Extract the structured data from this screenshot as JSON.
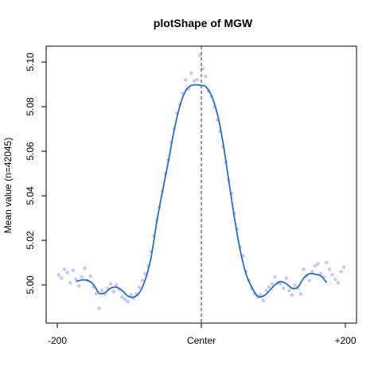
{
  "chart_data": {
    "type": "line",
    "title": "plotShape of MGW",
    "ylabel": "Mean value (n=42045)",
    "xlabel": "",
    "xlim": [
      -200,
      200
    ],
    "ylim": [
      4.988,
      5.11
    ],
    "x_ticks": [
      {
        "value": -200,
        "label": "-200"
      },
      {
        "value": 0,
        "label": "Center"
      },
      {
        "value": 200,
        "label": "+200"
      }
    ],
    "y_ticks": [
      {
        "value": 5.0,
        "label": "5.00"
      },
      {
        "value": 5.02,
        "label": "5.02"
      },
      {
        "value": 5.04,
        "label": "5.04"
      },
      {
        "value": 5.06,
        "label": "5.06"
      },
      {
        "value": 5.08,
        "label": "5.08"
      },
      {
        "value": 5.1,
        "label": "5.10"
      }
    ],
    "center_line_x": 0,
    "colors": {
      "line": "#2f6db5",
      "points": "#b7b7f7",
      "center_line": "#333333"
    },
    "series": [
      {
        "type": "line",
        "x": [
          -174,
          -166,
          -158,
          -150,
          -142,
          -134,
          -126,
          -118,
          -110,
          -102,
          -94,
          -86,
          -78,
          -70,
          -62,
          -54,
          -46,
          -38,
          -30,
          -22,
          -14,
          -6,
          0,
          6,
          14,
          22,
          30,
          38,
          46,
          54,
          62,
          70,
          78,
          86,
          94,
          102,
          110,
          118,
          126,
          134,
          142,
          150,
          158,
          166,
          174
        ],
        "y": [
          5.0015,
          5.0022,
          5.002,
          5.0003,
          4.9963,
          4.9965,
          4.9985,
          4.999,
          4.9975,
          4.995,
          4.9945,
          4.9965,
          5.0022,
          5.012,
          5.028,
          5.042,
          5.055,
          5.069,
          5.08,
          5.087,
          5.0895,
          5.0898,
          5.0895,
          5.089,
          5.085,
          5.077,
          5.064,
          5.047,
          5.03,
          5.0155,
          5.005,
          4.999,
          4.995,
          4.995,
          4.9972,
          5.0,
          5.0015,
          5.0005,
          4.9985,
          4.999,
          5.003,
          5.005,
          5.0048,
          5.004,
          5.001
        ]
      },
      {
        "type": "scatter",
        "x": [
          -198,
          -194,
          -190,
          -186,
          -182,
          -178,
          -174,
          -170,
          -166,
          -162,
          -158,
          -154,
          -150,
          -146,
          -142,
          -138,
          -134,
          -130,
          -126,
          -122,
          -118,
          -114,
          -110,
          -106,
          -102,
          -98,
          -94,
          -90,
          -86,
          -82,
          -78,
          -74,
          -70,
          -66,
          -62,
          -58,
          -54,
          -50,
          -46,
          -42,
          -38,
          -34,
          -30,
          -26,
          -22,
          -18,
          -14,
          -10,
          -6,
          -2,
          2,
          6,
          10,
          14,
          18,
          22,
          26,
          30,
          34,
          38,
          42,
          46,
          50,
          54,
          58,
          62,
          66,
          70,
          74,
          78,
          82,
          86,
          90,
          94,
          98,
          102,
          106,
          110,
          114,
          118,
          122,
          126,
          130,
          134,
          138,
          142,
          146,
          150,
          154,
          158,
          162,
          166,
          170,
          174,
          178,
          182,
          186,
          190,
          194,
          198
        ],
        "y": [
          5.0045,
          5.003,
          5.007,
          5.0055,
          5.001,
          5.0065,
          5.0025,
          4.9995,
          5.0035,
          5.0075,
          5.002,
          5.004,
          4.999,
          4.996,
          4.9895,
          4.9975,
          4.996,
          4.9985,
          5.0005,
          4.997,
          5.0,
          4.998,
          4.9945,
          4.9935,
          4.9925,
          4.9955,
          4.994,
          4.996,
          4.999,
          5.002,
          5.005,
          5.0085,
          5.015,
          5.022,
          5.029,
          5.035,
          5.042,
          5.05,
          5.056,
          5.064,
          5.07,
          5.077,
          5.081,
          5.086,
          5.092,
          5.088,
          5.095,
          5.0915,
          5.092,
          5.103,
          5.097,
          5.0935,
          5.087,
          5.0845,
          5.08,
          5.074,
          5.069,
          5.062,
          5.055,
          5.047,
          5.041,
          5.032,
          5.025,
          5.017,
          5.013,
          5.006,
          5.002,
          4.9985,
          4.996,
          4.9945,
          4.9955,
          4.993,
          4.9975,
          4.999,
          5.0005,
          5.0035,
          5.001,
          5.0005,
          4.9985,
          5.003,
          4.9975,
          4.9955,
          5.0,
          4.9985,
          4.996,
          5.007,
          5.004,
          5.002,
          5.006,
          5.0085,
          5.0095,
          5.005,
          5.0035,
          5.01,
          5.007,
          5.0045,
          5.0025,
          5.001,
          5.006,
          5.008
        ]
      }
    ]
  }
}
